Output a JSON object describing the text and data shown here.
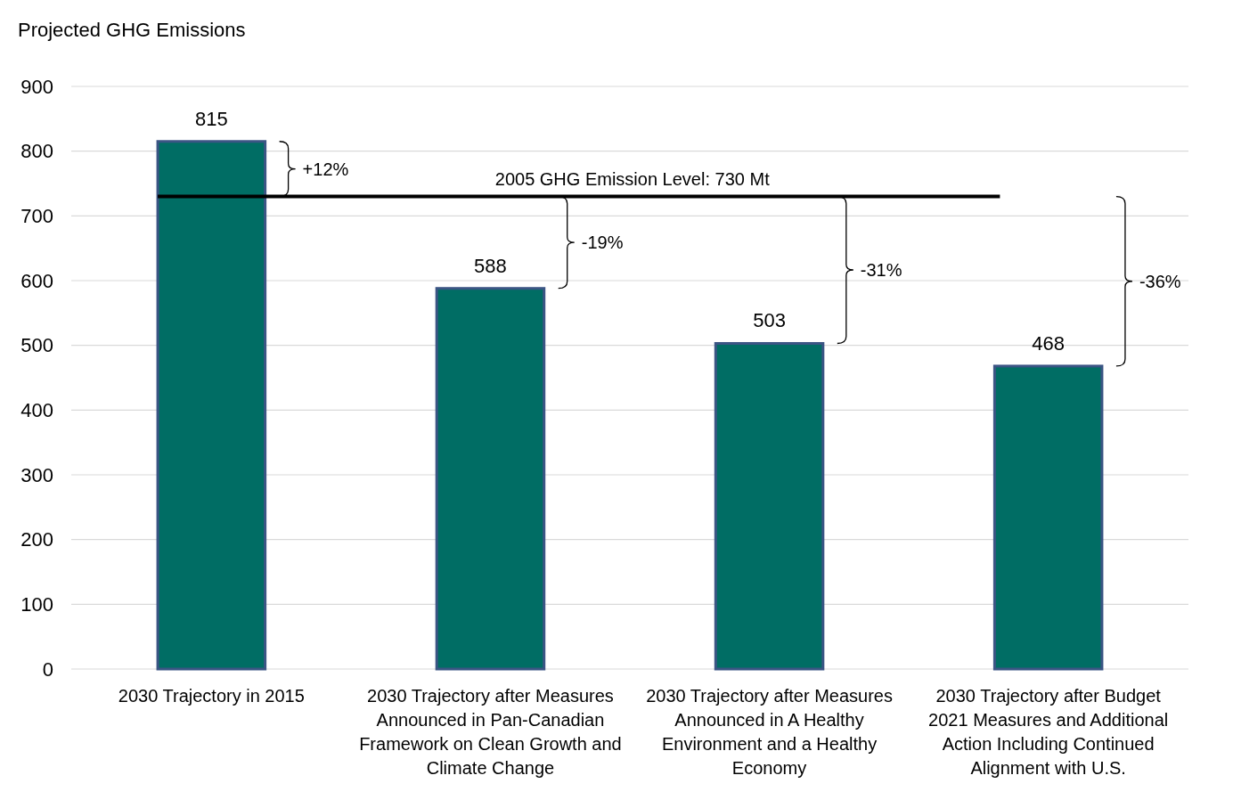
{
  "chart_data": {
    "type": "bar",
    "ylabel": "Projected GHG Emissions",
    "categories": [
      "2030 Trajectory in 2015",
      "2030 Trajectory after Measures Announced in Pan-Canadian Framework on Clean Growth and Climate Change",
      "2030 Trajectory after Measures Announced in A Healthy Environment and a Healthy Economy",
      "2030 Trajectory after Budget 2021 Measures and Additional Action Including Continued Alignment with U.S."
    ],
    "values": [
      815,
      588,
      503,
      468
    ],
    "color": "#006d64",
    "data_labels": true,
    "ylim": [
      0,
      900
    ],
    "yticks": [
      0,
      100,
      200,
      300,
      400,
      500,
      600,
      700,
      800,
      900
    ],
    "grid": "y",
    "ref_lines": [
      {
        "axis": "y",
        "value": 730,
        "label": "2005 GHG Emission Level: 730 Mt",
        "color": "#000000"
      }
    ],
    "annotations": [
      "+12%",
      "-19%",
      "-31%",
      "-36%"
    ]
  }
}
